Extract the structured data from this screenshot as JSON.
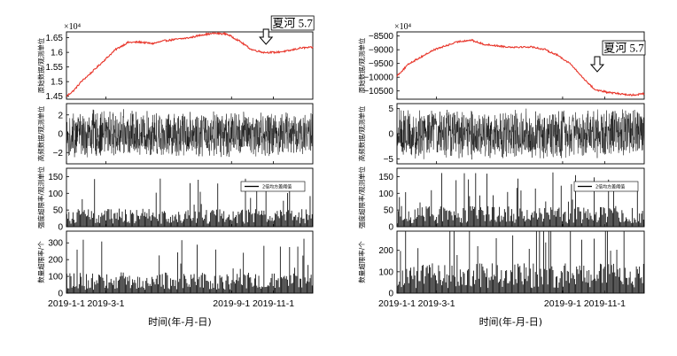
{
  "chart_data": [
    {
      "panel": "left",
      "subplots": [
        {
          "type": "line",
          "ylabel": "原始数据/观测单位",
          "multiplier": "×10⁴",
          "yticks": [
            "1.45",
            "1.5",
            "1.55",
            "1.6",
            "1.65"
          ],
          "ylim": [
            1.44,
            1.67
          ],
          "color": "#e8352a",
          "x": [
            0,
            0.03,
            0.06,
            0.1,
            0.15,
            0.2,
            0.25,
            0.3,
            0.35,
            0.4,
            0.45,
            0.5,
            0.55,
            0.6,
            0.65,
            0.7,
            0.75,
            0.8,
            0.85,
            0.9,
            0.95,
            1.0
          ],
          "values": [
            1.45,
            1.47,
            1.5,
            1.53,
            1.57,
            1.61,
            1.634,
            1.635,
            1.63,
            1.64,
            1.645,
            1.65,
            1.66,
            1.665,
            1.663,
            1.64,
            1.61,
            1.6,
            1.6,
            1.605,
            1.615,
            1.617
          ],
          "annotation": "夏河 5.7",
          "annotation_x": 0.81
        },
        {
          "type": "noise",
          "ylabel": "高频数据/观测单位",
          "yticks": [
            "2",
            "0",
            "−2"
          ],
          "ytick_values": [
            2,
            0,
            -2
          ],
          "ylim": [
            -3.2,
            3.2
          ],
          "amplitude": 2.3,
          "color": "#111111"
        },
        {
          "type": "bar",
          "ylabel": "强度超限率/观测单位",
          "yticks": [
            "150",
            "100",
            "50",
            "0"
          ],
          "ytick_values": [
            150,
            100,
            50,
            0
          ],
          "ylim": [
            0,
            175
          ],
          "mean": 35,
          "legend": "2倍均方差阈值",
          "legend_position": "top-right",
          "color": "#111111"
        },
        {
          "type": "bar",
          "ylabel": "数量超限率/个",
          "yticks": [
            "300",
            "200",
            "100",
            "0"
          ],
          "ytick_values": [
            300,
            200,
            100,
            0
          ],
          "ylim": [
            0,
            370
          ],
          "mean": 80,
          "color": "#111111"
        }
      ],
      "xticks": [
        "2019-1-1",
        "2019-3-1",
        "2019-9-1",
        "2019-11-1"
      ],
      "xtick_positions": [
        0,
        0.16,
        0.67,
        0.84
      ],
      "xlabel": "时间(年-月-日)"
    },
    {
      "panel": "right",
      "subplots": [
        {
          "type": "line",
          "ylabel": "原始数据/观测单位",
          "multiplier": "×10⁴",
          "yticks": [
            "−8500",
            "−9000",
            "−9500",
            "−10000",
            "−10500"
          ],
          "ytick_values": [
            -8500,
            -9000,
            -9500,
            -10000,
            -10500
          ],
          "ylim": [
            -10800,
            -8350
          ],
          "color": "#e8352a",
          "x": [
            0,
            0.05,
            0.1,
            0.15,
            0.2,
            0.25,
            0.3,
            0.35,
            0.4,
            0.45,
            0.5,
            0.55,
            0.6,
            0.65,
            0.7,
            0.75,
            0.8,
            0.85,
            0.9,
            0.95,
            1.0
          ],
          "values": [
            -9950,
            -9500,
            -9250,
            -9000,
            -8850,
            -8700,
            -8650,
            -8800,
            -8850,
            -8900,
            -8900,
            -8900,
            -9000,
            -9200,
            -9500,
            -10000,
            -10450,
            -10550,
            -10600,
            -10650,
            -10600
          ],
          "annotation": "夏河 5.7",
          "annotation_x": 0.81
        },
        {
          "type": "noise",
          "ylabel": "高频数据/观测单位",
          "yticks": [
            "5",
            "0",
            "−5"
          ],
          "ytick_values": [
            5,
            0,
            -5
          ],
          "ylim": [
            -6,
            6
          ],
          "amplitude": 4.6,
          "color": "#111111"
        },
        {
          "type": "bar",
          "ylabel": "强度超限率/观测单位",
          "yticks": [
            "150",
            "100",
            "50",
            "0"
          ],
          "ytick_values": [
            150,
            100,
            50,
            0
          ],
          "ylim": [
            0,
            175
          ],
          "mean": 40,
          "legend": "2倍均方差阈值",
          "legend_position": "top-right",
          "color": "#111111"
        },
        {
          "type": "bar",
          "ylabel": "数量超限率/个",
          "yticks": [
            "200",
            "100",
            "0"
          ],
          "ytick_values": [
            200,
            100,
            0
          ],
          "ylim": [
            0,
            290
          ],
          "mean": 90,
          "color": "#111111"
        }
      ],
      "xticks": [
        "2019-1-1",
        "2019-3-1",
        "2019-9-1",
        "2019-11-1"
      ],
      "xtick_positions": [
        0,
        0.16,
        0.67,
        0.84
      ],
      "xlabel": "时间(年-月-日)"
    }
  ]
}
